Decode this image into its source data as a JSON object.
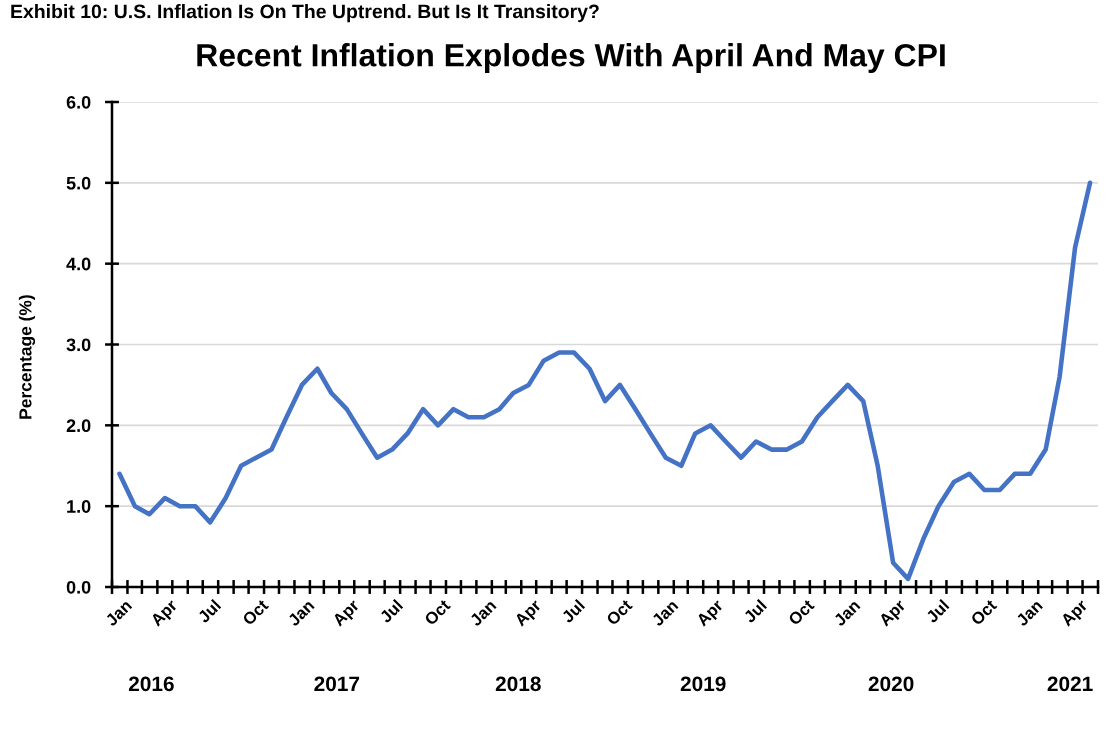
{
  "chart_data": {
    "type": "line",
    "title": "Recent Inflation Explodes With April And May CPI",
    "ylabel": "Percentage (%)",
    "annotations": [
      "Exhibit 10: U.S. Inflation Is On The Uptrend. But Is It Transitory?"
    ],
    "x": [
      "2016-01-16",
      "2016-02-16",
      "2016-03-16",
      "2016-04-16",
      "2016-05-16",
      "2016-06-16",
      "2016-07-16",
      "2016-08-16",
      "2016-09-16",
      "2016-10-16",
      "2016-11-16",
      "2016-12-16",
      "2017-01-16",
      "2017-02-16",
      "2017-03-16",
      "2017-04-16",
      "2017-05-16",
      "2017-06-16",
      "2017-07-16",
      "2017-08-16",
      "2017-09-16",
      "2017-10-16",
      "2017-11-16",
      "2017-12-16",
      "2018-01-16",
      "2018-02-16",
      "2018-03-16",
      "2018-04-16",
      "2018-05-16",
      "2018-06-16",
      "2018-07-16",
      "2018-08-16",
      "2018-09-16",
      "2018-10-16",
      "2018-11-16",
      "2018-12-16",
      "2019-01-16",
      "2019-02-16",
      "2019-03-16",
      "2019-04-16",
      "2019-05-16",
      "2019-06-16",
      "2019-07-16",
      "2019-08-16",
      "2019-09-16",
      "2019-10-16",
      "2019-11-16",
      "2019-12-16",
      "2020-01-16",
      "2020-02-16",
      "2020-03-16",
      "2020-04-16",
      "2020-05-16",
      "2020-06-16",
      "2020-07-16",
      "2020-08-16",
      "2020-09-16",
      "2020-10-16",
      "2020-11-16",
      "2020-12-16",
      "2021-01-16",
      "2021-02-16",
      "2021-03-16",
      "2021-04-16",
      "2021-05-16"
    ],
    "series": [
      {
        "color": "#4472c4",
        "values": [
          1.4,
          1.0,
          0.9,
          1.1,
          1.0,
          1.0,
          0.8,
          1.1,
          1.5,
          1.6,
          1.7,
          2.1,
          2.5,
          2.7,
          2.4,
          2.2,
          1.9,
          1.6,
          1.7,
          1.9,
          2.2,
          2.0,
          2.2,
          2.1,
          2.1,
          2.2,
          2.4,
          2.5,
          2.8,
          2.9,
          2.9,
          2.7,
          2.3,
          2.5,
          2.2,
          1.9,
          1.6,
          1.5,
          1.9,
          2.0,
          1.8,
          1.6,
          1.8,
          1.7,
          1.7,
          1.8,
          2.1,
          2.3,
          2.5,
          2.3,
          1.5,
          0.3,
          0.1,
          0.6,
          1.0,
          1.3,
          1.4,
          1.2,
          1.2,
          1.4,
          1.4,
          1.7,
          2.6,
          4.2,
          5.0
        ]
      }
    ],
    "xlim": [
      "2016-01-01",
      "2021-06-01"
    ],
    "xticks": [
      {
        "value": "2016-01-01",
        "label": null
      },
      {
        "value": "2016-01",
        "label": "Jan"
      },
      {
        "value": "2016-02-01",
        "label": null
      },
      {
        "value": "2016-03-01",
        "label": null
      },
      {
        "value": "2016-04-01",
        "label": null
      },
      {
        "value": "2016-04",
        "label": "Apr"
      },
      {
        "value": "2016-05-01",
        "label": null
      },
      {
        "value": "2016-06-01",
        "label": null
      },
      {
        "value": "2016-07-01",
        "label": null
      },
      {
        "value": "2016-07",
        "label": "Jul"
      },
      {
        "value": "2016-08-01",
        "label": null
      },
      {
        "value": "2016-09-01",
        "label": null
      },
      {
        "value": "2016-10-01",
        "label": null
      },
      {
        "value": "2016-10",
        "label": "Oct"
      },
      {
        "value": "2016-11-01",
        "label": null
      },
      {
        "value": "2016-12-01",
        "label": null
      },
      {
        "value": "2017-01-01",
        "label": null
      },
      {
        "value": "2017-01",
        "label": "Jan"
      },
      {
        "value": "2017-02-01",
        "label": null
      },
      {
        "value": "2017-03-01",
        "label": null
      },
      {
        "value": "2017-04-01",
        "label": null
      },
      {
        "value": "2017-04",
        "label": "Apr"
      },
      {
        "value": "2017-05-01",
        "label": null
      },
      {
        "value": "2017-06-01",
        "label": null
      },
      {
        "value": "2017-07-01",
        "label": null
      },
      {
        "value": "2017-07",
        "label": "Jul"
      },
      {
        "value": "2017-08-01",
        "label": null
      },
      {
        "value": "2017-09-01",
        "label": null
      },
      {
        "value": "2017-10-01",
        "label": null
      },
      {
        "value": "2017-10",
        "label": "Oct"
      },
      {
        "value": "2017-11-01",
        "label": null
      },
      {
        "value": "2017-12-01",
        "label": null
      },
      {
        "value": "2018-01-01",
        "label": null
      },
      {
        "value": "2018-01",
        "label": "Jan"
      },
      {
        "value": "2018-02-01",
        "label": null
      },
      {
        "value": "2018-03-01",
        "label": null
      },
      {
        "value": "2018-04-01",
        "label": null
      },
      {
        "value": "2018-04",
        "label": "Apr"
      },
      {
        "value": "2018-05-01",
        "label": null
      },
      {
        "value": "2018-06-01",
        "label": null
      },
      {
        "value": "2018-07-01",
        "label": null
      },
      {
        "value": "2018-07",
        "label": "Jul"
      },
      {
        "value": "2018-08-01",
        "label": null
      },
      {
        "value": "2018-09-01",
        "label": null
      },
      {
        "value": "2018-10-01",
        "label": null
      },
      {
        "value": "2018-10",
        "label": "Oct"
      },
      {
        "value": "2018-11-01",
        "label": null
      },
      {
        "value": "2018-12-01",
        "label": null
      },
      {
        "value": "2019-01-01",
        "label": null
      },
      {
        "value": "2019-01",
        "label": "Jan"
      },
      {
        "value": "2019-02-01",
        "label": null
      },
      {
        "value": "2019-03-01",
        "label": null
      },
      {
        "value": "2019-04-01",
        "label": null
      },
      {
        "value": "2019-04",
        "label": "Apr"
      },
      {
        "value": "2019-05-01",
        "label": null
      },
      {
        "value": "2019-06-01",
        "label": null
      },
      {
        "value": "2019-07-01",
        "label": null
      },
      {
        "value": "2019-07",
        "label": "Jul"
      },
      {
        "value": "2019-08-01",
        "label": null
      },
      {
        "value": "2019-09-01",
        "label": null
      },
      {
        "value": "2019-10-01",
        "label": null
      },
      {
        "value": "2019-10",
        "label": "Oct"
      },
      {
        "value": "2019-11-01",
        "label": null
      },
      {
        "value": "2019-12-01",
        "label": null
      },
      {
        "value": "2020-01-01",
        "label": null
      },
      {
        "value": "2020-01",
        "label": "Jan"
      },
      {
        "value": "2020-02-01",
        "label": null
      },
      {
        "value": "2020-03-01",
        "label": null
      },
      {
        "value": "2020-04-01",
        "label": null
      },
      {
        "value": "2020-04",
        "label": "Apr"
      },
      {
        "value": "2020-05-01",
        "label": null
      },
      {
        "value": "2020-06-01",
        "label": null
      },
      {
        "value": "2020-07-01",
        "label": null
      },
      {
        "value": "2020-07",
        "label": "Jul"
      },
      {
        "value": "2020-08-01",
        "label": null
      },
      {
        "value": "2020-09-01",
        "label": null
      },
      {
        "value": "2020-10-01",
        "label": null
      },
      {
        "value": "2020-10",
        "label": "Oct"
      },
      {
        "value": "2020-11-01",
        "label": null
      },
      {
        "value": "2020-12-01",
        "label": null
      },
      {
        "value": "2021-01-01",
        "label": null
      },
      {
        "value": "2021-01",
        "label": "Jan"
      },
      {
        "value": "2021-02-01",
        "label": null
      },
      {
        "value": "2021-03-01",
        "label": null
      },
      {
        "value": "2021-04-01",
        "label": null
      },
      {
        "value": "2021-04",
        "label": "Apr"
      },
      {
        "value": "2021-05-01",
        "label": null
      },
      {
        "value": "2021-06-01",
        "label": null
      }
    ],
    "x2lim": [
      "2016-01-01",
      "2021-06-01"
    ],
    "x2ticks": [
      {
        "value": "2016-03-20",
        "label": "2016"
      },
      {
        "value": "2017-03-27",
        "label": "2017"
      },
      {
        "value": "2018-03-26",
        "label": "2018"
      },
      {
        "value": "2019-04-01",
        "label": "2019"
      },
      {
        "value": "2020-04-12",
        "label": "2020"
      },
      {
        "value": "2021-04-06",
        "label": "2021"
      }
    ],
    "ylim": [
      0,
      6
    ],
    "yticks": [
      {
        "value": 0,
        "label": "0.0"
      },
      {
        "value": 1,
        "label": "1.0"
      },
      {
        "value": 2,
        "label": "2.0"
      },
      {
        "value": 3,
        "label": "3.0"
      },
      {
        "value": 4,
        "label": "4.0"
      },
      {
        "value": 5,
        "label": "5.0"
      },
      {
        "value": 6,
        "label": "6.0"
      }
    ],
    "grid": "y"
  }
}
